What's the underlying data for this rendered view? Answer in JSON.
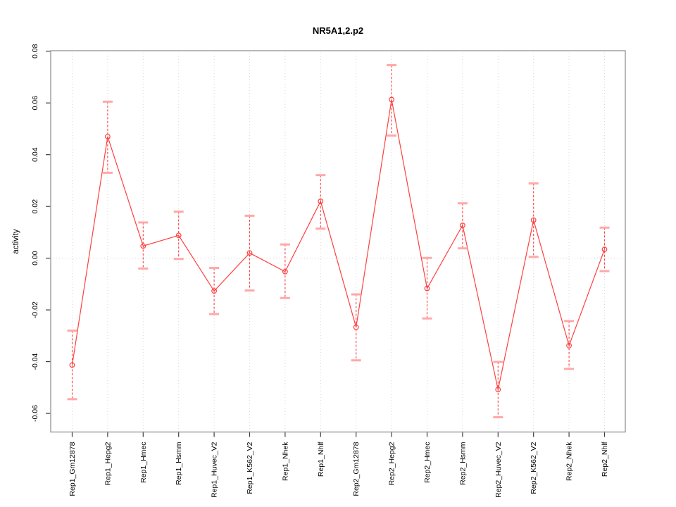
{
  "chart_data": {
    "type": "line",
    "title": "NR5A1,2.p2",
    "ylabel": "activity",
    "xlabel": "",
    "legend": null,
    "grid": "vertical dotted gridlines at each category; dotted horizontal line at y=0",
    "categories": [
      "Rep1_Gm12878",
      "Rep1_Hepg2",
      "Rep1_Hmec",
      "Rep1_Hsmm",
      "Rep1_Huvec_V2",
      "Rep1_K562_V2",
      "Rep1_Nhek",
      "Rep1_Nhlf",
      "Rep2_Gm12878",
      "Rep2_Hepg2",
      "Rep2_Hmec",
      "Rep2_Hsmm",
      "Rep2_Huvec_V2",
      "Rep2_K562_V2",
      "Rep2_Nhek",
      "Rep2_Nhlf"
    ],
    "series": [
      {
        "name": "activity",
        "values": [
          -0.0413,
          0.047,
          0.0047,
          0.0088,
          -0.0127,
          0.002,
          -0.0052,
          0.022,
          -0.0267,
          0.0613,
          -0.0117,
          0.0127,
          -0.0508,
          0.0147,
          -0.0338,
          0.0034
        ],
        "error_low": [
          -0.0545,
          0.033,
          -0.004,
          -0.0003,
          -0.0216,
          -0.0125,
          -0.0154,
          0.0114,
          -0.0395,
          0.0474,
          -0.0233,
          0.0038,
          -0.0615,
          0.0005,
          -0.0428,
          -0.005
        ],
        "error_high": [
          -0.028,
          0.0605,
          0.0138,
          0.018,
          -0.0038,
          0.0164,
          0.0053,
          0.0321,
          -0.014,
          0.0746,
          0.0001,
          0.0212,
          -0.0401,
          0.0289,
          -0.0243,
          0.0118
        ]
      }
    ],
    "ylim": [
      -0.0672,
      0.0802
    ],
    "yticks": [
      -0.06,
      -0.04,
      -0.02,
      0,
      0.02,
      0.04,
      0.06,
      0.08
    ],
    "ytick_labels": [
      "-0.06",
      "-0.04",
      "-0.02",
      "0.00",
      "0.02",
      "0.04",
      "0.06",
      "0.08"
    ],
    "zero_reference_line": 0,
    "marker": "open-circle",
    "error_line_style": "dashed",
    "colors": {
      "line": "#ff4040",
      "error_cap": "#ffa8a8",
      "grid": "#d8d8d8",
      "zero_line": "#cfcfcf",
      "box": "#9b9b9b",
      "tick": "#3c3c3c",
      "text": "#000000",
      "background": "#ffffff"
    }
  }
}
